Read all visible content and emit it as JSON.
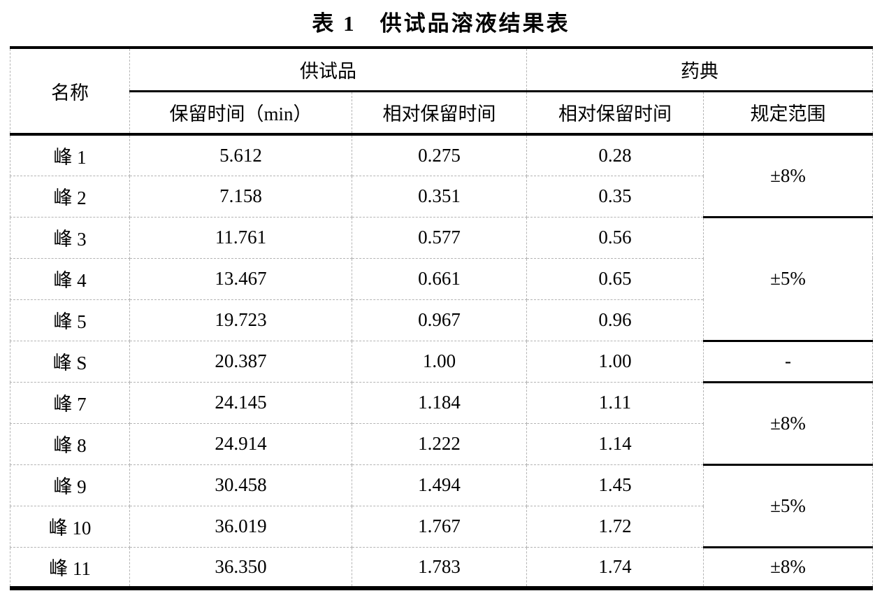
{
  "title": "表 1　供试品溶液结果表",
  "colors": {
    "background": "#ffffff",
    "text": "#000000",
    "strong_rule": "#000000",
    "grid_rule": "#b4b4b4"
  },
  "table": {
    "header": {
      "name": "名称",
      "sample_group": "供试品",
      "pharmacopoeia_group": "药典",
      "retention_time": "保留时间（min）",
      "sample_relative_retention": "相对保留时间",
      "pharmacopoeia_relative_retention": "相对保留时间",
      "specified_range": "规定范围"
    },
    "rows": [
      {
        "name": "峰 1",
        "retention_time": "5.612",
        "relative_retention": "0.275",
        "pharm_relative_retention": "0.28",
        "specified_range": "±8%"
      },
      {
        "name": "峰 2",
        "retention_time": "7.158",
        "relative_retention": "0.351",
        "pharm_relative_retention": "0.35"
      },
      {
        "name": "峰 3",
        "retention_time": "11.761",
        "relative_retention": "0.577",
        "pharm_relative_retention": "0.56",
        "specified_range": "±5%"
      },
      {
        "name": "峰 4",
        "retention_time": "13.467",
        "relative_retention": "0.661",
        "pharm_relative_retention": "0.65"
      },
      {
        "name": "峰 5",
        "retention_time": "19.723",
        "relative_retention": "0.967",
        "pharm_relative_retention": "0.96"
      },
      {
        "name": "峰 S",
        "retention_time": "20.387",
        "relative_retention": "1.00",
        "pharm_relative_retention": "1.00",
        "specified_range": "-"
      },
      {
        "name": "峰 7",
        "retention_time": "24.145",
        "relative_retention": "1.184",
        "pharm_relative_retention": "1.11",
        "specified_range": "±8%"
      },
      {
        "name": "峰 8",
        "retention_time": "24.914",
        "relative_retention": "1.222",
        "pharm_relative_retention": "1.14"
      },
      {
        "name": "峰 9",
        "retention_time": "30.458",
        "relative_retention": "1.494",
        "pharm_relative_retention": "1.45",
        "specified_range": "±5%"
      },
      {
        "name": "峰 10",
        "retention_time": "36.019",
        "relative_retention": "1.767",
        "pharm_relative_retention": "1.72"
      },
      {
        "name": "峰 11",
        "retention_time": "36.350",
        "relative_retention": "1.783",
        "pharm_relative_retention": "1.74",
        "specified_range": "±8%"
      }
    ]
  }
}
